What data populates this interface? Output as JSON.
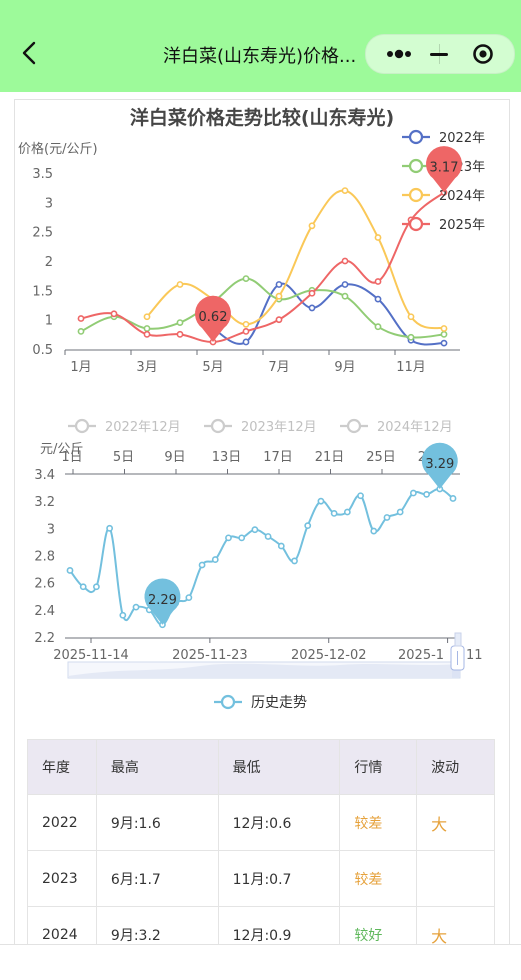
{
  "nav": {
    "title": "洋白菜(山东寿光)价格..."
  },
  "chart1": {
    "title": "洋白菜价格走势比较(山东寿光)",
    "ylabel": "价格(元/公斤)",
    "yticks": [
      "3.5",
      "3",
      "2.5",
      "2",
      "1.5",
      "1",
      "0.5"
    ],
    "xticks": [
      "1月",
      "3月",
      "5月",
      "7月",
      "9月",
      "11月"
    ],
    "legend": [
      "2022年",
      "2023年",
      "2024年",
      "2025年"
    ],
    "colors": [
      "#5470c6",
      "#91cc75",
      "#fac858",
      "#ee6666"
    ],
    "markers": [
      {
        "label": "0.62",
        "color": "#ee6666"
      },
      {
        "label": "3.17",
        "color": "#ee6666"
      }
    ]
  },
  "chart_data": [
    {
      "type": "line",
      "title": "洋白菜价格走势比较(山东寿光)",
      "ylabel": "价格(元/公斤)",
      "categories": [
        "1月",
        "2月",
        "3月",
        "4月",
        "5月",
        "6月",
        "7月",
        "8月",
        "9月",
        "10月",
        "11月",
        "12月"
      ],
      "ylim": [
        0.5,
        3.5
      ],
      "series": [
        {
          "name": "2022年",
          "values": [
            null,
            null,
            null,
            null,
            0.85,
            0.62,
            1.6,
            1.2,
            1.6,
            1.35,
            0.65,
            0.6
          ]
        },
        {
          "name": "2023年",
          "values": [
            0.8,
            1.05,
            0.85,
            0.95,
            1.3,
            1.7,
            1.35,
            1.5,
            1.4,
            0.88,
            0.7,
            0.75
          ]
        },
        {
          "name": "2024年",
          "values": [
            null,
            null,
            1.05,
            1.6,
            1.35,
            0.92,
            1.4,
            2.6,
            3.2,
            2.4,
            1.05,
            0.85
          ]
        },
        {
          "name": "2025年",
          "values": [
            1.02,
            1.1,
            0.75,
            0.75,
            0.62,
            0.8,
            1.0,
            1.45,
            2.0,
            1.65,
            2.7,
            3.17
          ]
        }
      ]
    },
    {
      "type": "line",
      "ylabel": "元/公斤",
      "ylim": [
        2.2,
        3.4
      ],
      "x": [
        "2025-11-14",
        "2025-11-15",
        "2025-11-16",
        "2025-11-17",
        "2025-11-18",
        "2025-11-19",
        "2025-11-20",
        "2025-11-21",
        "2025-11-22",
        "2025-11-23",
        "2025-11-24",
        "2025-11-25",
        "2025-11-26",
        "2025-11-27",
        "2025-11-28",
        "2025-11-29",
        "2025-11-30",
        "2025-12-01",
        "2025-12-02",
        "2025-12-03",
        "2025-12-04",
        "2025-12-05",
        "2025-12-06",
        "2025-12-07",
        "2025-12-08",
        "2025-12-09",
        "2025-12-10",
        "2025-12-11",
        "2025-12-12",
        "2025-12-13"
      ],
      "series": [
        {
          "name": "历史走势",
          "values": [
            2.69,
            2.57,
            2.57,
            3.0,
            2.36,
            2.42,
            2.4,
            2.29,
            2.45,
            2.49,
            2.73,
            2.77,
            2.93,
            2.93,
            2.99,
            2.94,
            2.87,
            2.76,
            3.02,
            3.2,
            3.11,
            3.12,
            3.24,
            2.98,
            3.08,
            3.12,
            3.26,
            3.25,
            3.29,
            3.22
          ]
        }
      ]
    }
  ],
  "chart2": {
    "legend_top": [
      "2022年12月",
      "2023年12月",
      "2024年12月"
    ],
    "ylabel": "元/公斤",
    "yticks": [
      "3.4",
      "3.2",
      "3",
      "2.8",
      "2.6",
      "2.4",
      "2.2"
    ],
    "day_ticks": [
      "1日",
      "5日",
      "9日",
      "13日",
      "17日",
      "21日",
      "25日",
      "29日"
    ],
    "date_ticks": [
      "2025-11-14",
      "2025-11-23",
      "2025-12-02",
      "2025-12-11"
    ],
    "date_tick_last_partial": "2025-1",
    "date_tick_last_tail": "11",
    "legend_bottom": "历史走势",
    "color": "#73c0de",
    "markers": [
      {
        "label": "2.29"
      },
      {
        "label": "3.29"
      }
    ]
  },
  "table": {
    "headers": [
      "年度",
      "最高",
      "最低",
      "行情",
      "波动"
    ],
    "rows": [
      {
        "year": "2022",
        "high": "9月:1.6",
        "low": "12月:0.6",
        "trend": "较差",
        "vol": "大"
      },
      {
        "year": "2023",
        "high": "6月:1.7",
        "low": "11月:0.7",
        "trend": "较差",
        "vol": ""
      },
      {
        "year": "2024",
        "high": "9月:3.2",
        "low": "12月:0.9",
        "trend": "较好",
        "vol": "大"
      }
    ]
  }
}
